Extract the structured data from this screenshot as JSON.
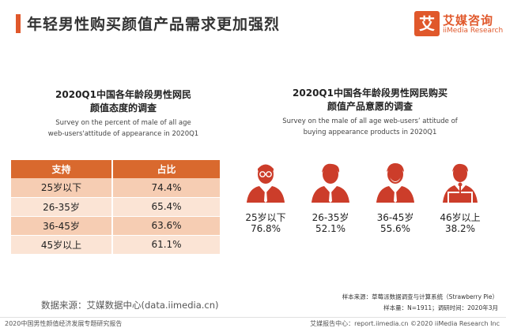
{
  "header": {
    "title": "年轻男性购买颜值产品需求更加强烈"
  },
  "logo": {
    "box_char": "艾",
    "name_cn": "艾媒咨询",
    "name_en": "iiMedia Research"
  },
  "colors": {
    "accent": "#e0582b",
    "table_header": "#d9692e",
    "row_even": "#f6cdb3",
    "row_odd": "#fbe4d5",
    "icon": "#cc3d2a"
  },
  "left_chart": {
    "title_line1": "2020Q1中国各年龄段男性网民",
    "title_line2": "颜值态度的调查",
    "subtitle_line1": "Survey on the percent of male of all age",
    "subtitle_line2": "web-users'attitude of appearance in 2020Q1"
  },
  "right_chart": {
    "title_line1": "2020Q1中国各年龄段男性网民购买",
    "title_line2": "颜值产品意愿的调查",
    "subtitle_line1": "Survey on the male of all age web-users’ attitude of",
    "subtitle_line2": "buying appearance products  in 2020Q1"
  },
  "chart_data": [
    {
      "type": "table",
      "title": "2020Q1中国各年龄段男性网民颜值态度的调查",
      "columns": [
        "支持",
        "占比"
      ],
      "rows": [
        {
          "age": "25岁以下",
          "value": "74.4%"
        },
        {
          "age": "26-35岁",
          "value": "65.4%"
        },
        {
          "age": "36-45岁",
          "value": "63.6%"
        },
        {
          "age": "45岁以上",
          "value": "61.1%"
        }
      ]
    },
    {
      "type": "bar",
      "title": "2020Q1中国各年龄段男性网民购买颜值产品意愿的调查",
      "categories": [
        "25岁以下",
        "26-35岁",
        "36-45岁",
        "46岁以上"
      ],
      "values": [
        76.8,
        52.1,
        55.6,
        38.2
      ],
      "labels": [
        "76.8%",
        "52.1%",
        "55.6%",
        "38.2%"
      ]
    }
  ],
  "notes": {
    "line1": "样本来源：草莓派数据调查与计算系统（Strawberry  Pie）",
    "line2": "样本量：N=1911；调研时间：2020年3月"
  },
  "source": "数据来源：艾媒数据中心(data.iimedia.cn)",
  "footer": {
    "left": "2020中国男性颜值经济发展专题研究报告",
    "right": "艾媒报告中心：report.iimedia.cn  ©2020  iiMedia Research  Inc"
  }
}
